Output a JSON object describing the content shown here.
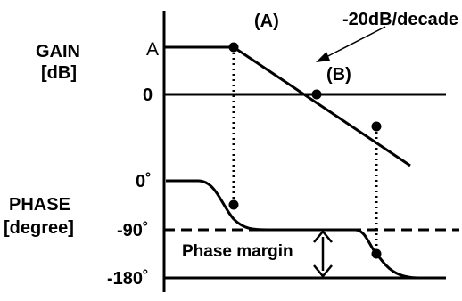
{
  "gain_label_line1": "GAIN",
  "gain_label_line2": "[dB]",
  "phase_label_line1": "PHASE",
  "phase_label_line2": "[degree]",
  "gain_ticks": [
    "A",
    "0"
  ],
  "phase_ticks": [
    "0˚",
    "-90˚",
    "-180˚"
  ],
  "annotations": {
    "point_a": "(A)",
    "point_b": "(B)",
    "slope": "-20dB/decade",
    "margin": "Phase margin"
  }
}
